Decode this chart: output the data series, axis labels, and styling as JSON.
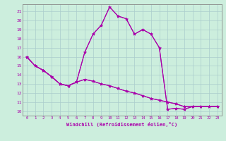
{
  "xlabel": "Windchill (Refroidissement éolien,°C)",
  "bg_color": "#cceedd",
  "grid_color": "#aacccc",
  "line_color": "#aa00aa",
  "xlim": [
    -0.5,
    23.5
  ],
  "ylim": [
    9.5,
    21.8
  ],
  "yticks": [
    10,
    11,
    12,
    13,
    14,
    15,
    16,
    17,
    18,
    19,
    20,
    21
  ],
  "xticks": [
    0,
    1,
    2,
    3,
    4,
    5,
    6,
    7,
    8,
    9,
    10,
    11,
    12,
    13,
    14,
    15,
    16,
    17,
    18,
    19,
    20,
    21,
    22,
    23
  ],
  "series": [
    {
      "x": [
        0,
        1,
        2,
        3,
        4,
        5,
        6,
        7,
        8,
        9,
        10,
        11,
        12,
        13,
        14,
        15,
        16,
        17,
        18,
        19,
        20,
        21,
        22,
        23
      ],
      "y": [
        16.0,
        15.0,
        14.5,
        13.8,
        13.0,
        12.8,
        13.2,
        16.5,
        18.5,
        19.5,
        21.5,
        20.5,
        20.2,
        18.5,
        19.0,
        18.5,
        17.0,
        10.2,
        10.3,
        10.2,
        10.5,
        10.5,
        10.5,
        10.5
      ]
    },
    {
      "x": [
        0,
        1,
        2,
        3,
        4,
        5,
        6,
        7,
        8,
        9,
        10,
        11,
        12,
        13,
        14,
        15,
        16,
        17,
        18,
        19,
        20,
        21,
        22,
        23
      ],
      "y": [
        16.0,
        15.0,
        14.5,
        13.8,
        13.0,
        12.8,
        13.2,
        16.5,
        18.5,
        19.5,
        21.5,
        20.5,
        20.2,
        18.5,
        19.0,
        18.5,
        17.0,
        10.2,
        10.3,
        10.2,
        10.5,
        10.5,
        10.5,
        10.5
      ]
    },
    {
      "x": [
        0,
        1,
        2,
        3,
        4,
        5,
        6,
        7,
        8,
        9,
        10,
        11,
        12,
        13,
        14,
        15,
        16,
        17,
        18,
        19,
        20,
        21,
        22,
        23
      ],
      "y": [
        16.0,
        15.0,
        14.5,
        13.8,
        13.0,
        12.8,
        13.2,
        13.5,
        13.3,
        13.0,
        12.8,
        12.5,
        12.2,
        12.0,
        11.7,
        11.4,
        11.2,
        11.0,
        10.8,
        10.5,
        10.5,
        10.5,
        10.5,
        10.5
      ]
    },
    {
      "x": [
        0,
        1,
        2,
        3,
        4,
        5,
        6,
        7,
        8,
        9,
        10,
        11,
        12,
        13,
        14,
        15,
        16,
        17,
        18,
        19,
        20,
        21,
        22,
        23
      ],
      "y": [
        16.0,
        15.0,
        14.5,
        13.8,
        13.0,
        12.8,
        13.2,
        13.5,
        13.3,
        13.0,
        12.8,
        12.5,
        12.2,
        12.0,
        11.7,
        11.4,
        11.2,
        11.0,
        10.8,
        10.5,
        10.5,
        10.5,
        10.5,
        10.5
      ]
    }
  ]
}
